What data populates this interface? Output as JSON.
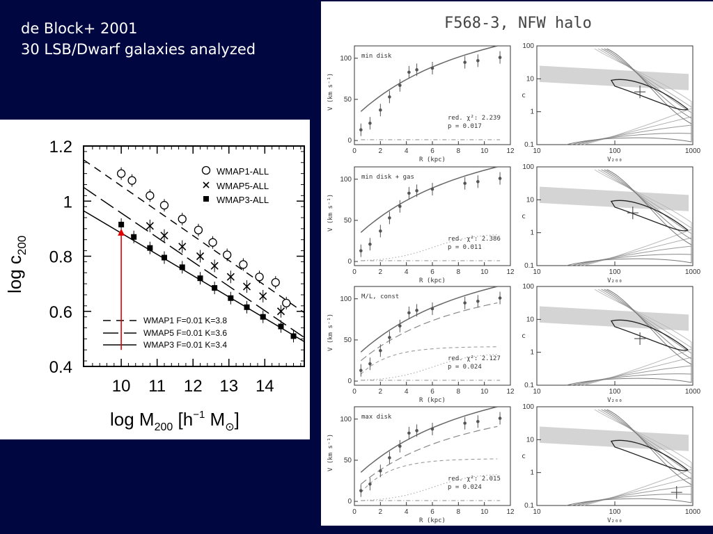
{
  "slide": {
    "title_line1": "de Block+ 2001",
    "title_line2": "30 LSB/Dwarf galaxies analyzed"
  },
  "colors": {
    "background": "#000640",
    "arrow": "#e00000",
    "panel": "#ffffff"
  },
  "chart_data": [
    {
      "type": "scatter",
      "xlabel": "log M200 [h-1 Msun]",
      "ylabel": "log c200",
      "x_ticks": [
        "10",
        "11",
        "12",
        "13",
        "14"
      ],
      "y_ticks": [
        "0.4",
        "0.6",
        "0.8",
        "1",
        "1.2"
      ],
      "xlim": [
        8.95,
        15.1
      ],
      "ylim": [
        0.4,
        1.2
      ],
      "series": [
        {
          "name": "WMAP1-ALL",
          "marker": "circle",
          "x": [
            10.0,
            10.3,
            10.8,
            11.2,
            11.7,
            12.15,
            12.55,
            12.95,
            13.4,
            13.85,
            14.3,
            14.6
          ],
          "y": [
            1.1,
            1.075,
            1.02,
            0.985,
            0.935,
            0.895,
            0.85,
            0.805,
            0.77,
            0.725,
            0.705,
            0.63
          ]
        },
        {
          "name": "WMAP5-ALL",
          "marker": "cross",
          "x": [
            10.8,
            11.2,
            11.7,
            12.2,
            12.6,
            13.05,
            13.5,
            13.95,
            14.45
          ],
          "y": [
            0.91,
            0.875,
            0.835,
            0.8,
            0.765,
            0.725,
            0.69,
            0.655,
            0.6
          ]
        },
        {
          "name": "WMAP3-ALL",
          "marker": "filled-square",
          "x": [
            10.0,
            10.35,
            10.8,
            11.2,
            11.7,
            12.2,
            12.6,
            13.05,
            13.5,
            13.95,
            14.45,
            14.8
          ],
          "y": [
            0.915,
            0.87,
            0.83,
            0.795,
            0.76,
            0.72,
            0.685,
            0.648,
            0.615,
            0.58,
            0.545,
            0.51
          ]
        }
      ],
      "fits": [
        {
          "name": "WMAP1 F=0.01 K=3.8",
          "style": "dashed",
          "x": [
            8.95,
            15.1
          ],
          "y": [
            1.15,
            0.595
          ]
        },
        {
          "name": "WMAP5 F=0.01 K=3.6",
          "style": "long-dash",
          "x": [
            8.95,
            15.1
          ],
          "y": [
            1.05,
            0.505
          ]
        },
        {
          "name": "WMAP3 F=0.01 K=3.4",
          "style": "solid",
          "x": [
            8.95,
            15.1
          ],
          "y": [
            0.965,
            0.49
          ]
        }
      ],
      "arrow": {
        "x": 10.0,
        "y_from": 0.46,
        "y_to": 0.915
      }
    },
    {
      "type": "line",
      "title": "F568-3, NFW halo",
      "rotation_curve_panels": [
        {
          "label": "min disk",
          "chi2": "red. χ²: 2.239",
          "p": "p = 0.017"
        },
        {
          "label": "min disk + gas",
          "chi2": "red. χ²: 2.386",
          "p": "p = 0.011"
        },
        {
          "label": "M/L, const",
          "chi2": "red. χ²: 2.127",
          "p": "p = 0.024"
        },
        {
          "label": "max disk",
          "chi2": "red. χ²: 2.015",
          "p": "p = 0.024"
        }
      ],
      "rc_xlabel": "R (kpc)",
      "rc_ylabel": "V (km s⁻¹)",
      "rc_x_ticks": [
        "0",
        "2",
        "4",
        "6",
        "8",
        "10",
        "12"
      ],
      "rc_y_ticks": [
        "0",
        "50",
        "100"
      ],
      "contour_xlabel": "V₂₀₀",
      "contour_ylabel": "c",
      "contour_x_ticks": [
        "10",
        "100",
        "1000"
      ],
      "contour_y_ticks": [
        "0.1",
        "1",
        "10",
        "100"
      ],
      "observed": {
        "R": [
          0.5,
          1.2,
          2.0,
          2.7,
          3.5,
          4.2,
          4.8,
          6.0,
          8.5,
          9.5,
          11.2
        ],
        "V": [
          13,
          21,
          37,
          53,
          67,
          83,
          86,
          88,
          95,
          97,
          101
        ]
      }
    }
  ]
}
